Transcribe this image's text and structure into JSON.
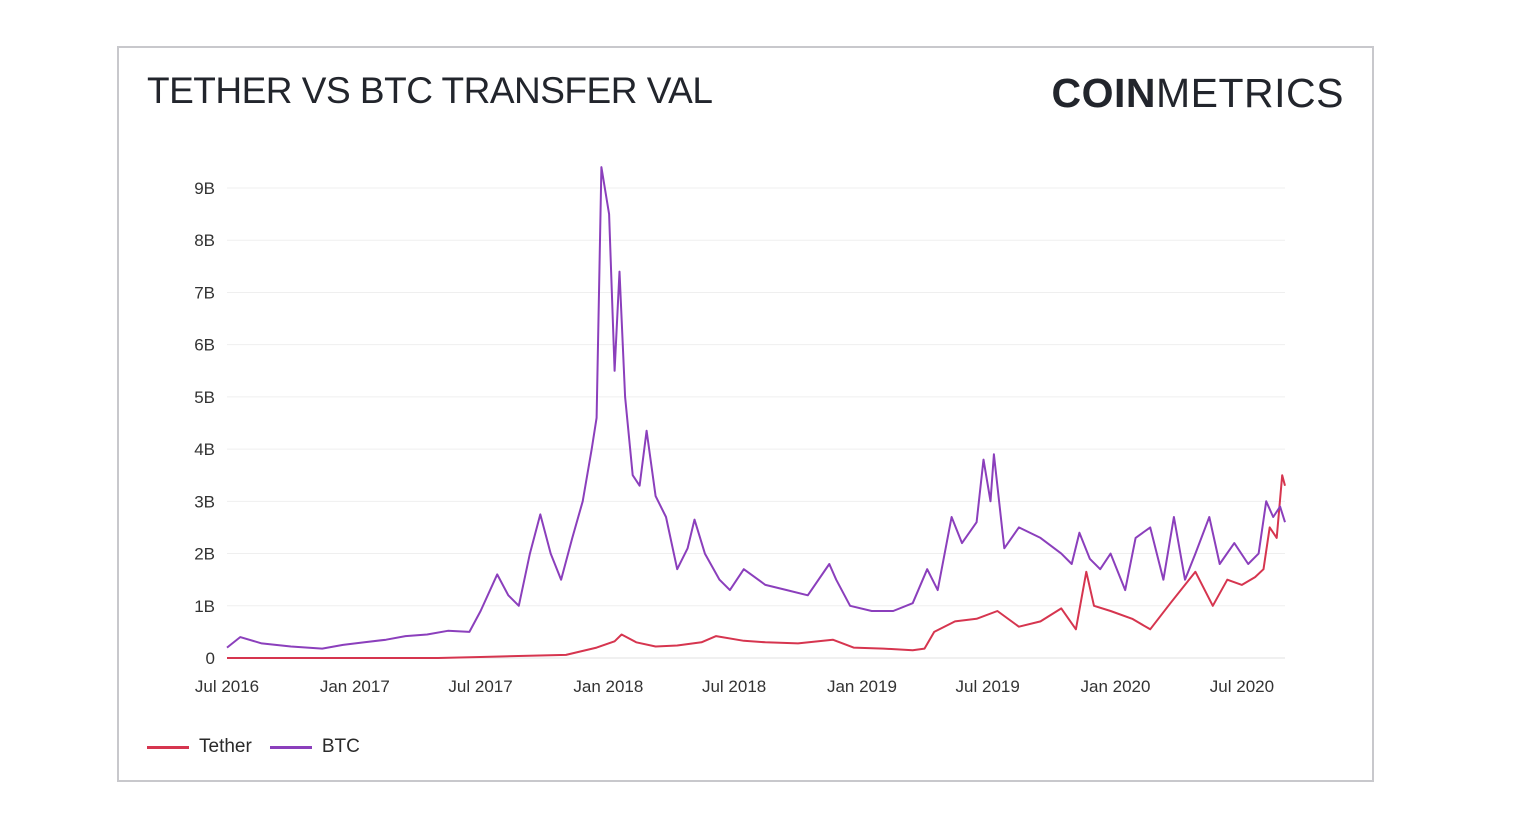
{
  "header": {
    "title": "TETHER VS BTC TRANSFER VAL",
    "logo_bold": "COIN",
    "logo_thin": "METRICS"
  },
  "chart_data": {
    "type": "line",
    "x_ticks": [
      "Jul 2016",
      "Jan 2017",
      "Jul 2017",
      "Jan 2018",
      "Jul 2018",
      "Jan 2019",
      "Jul 2019",
      "Jan 2020",
      "Jul 2020"
    ],
    "y_ticks": [
      "0",
      "1B",
      "2B",
      "3B",
      "4B",
      "5B",
      "6B",
      "7B",
      "8B",
      "9B"
    ],
    "ylim": [
      0,
      9000000000
    ],
    "xlim": [
      "2016-07-01",
      "2020-09-01"
    ],
    "grid": true,
    "legend_position": "bottom-left",
    "series": [
      {
        "name": "Tether",
        "color": "#d6354f",
        "points": [
          [
            "2016-07-01",
            0
          ],
          [
            "2017-01-01",
            0
          ],
          [
            "2017-05-01",
            0
          ],
          [
            "2017-07-01",
            20000000
          ],
          [
            "2017-09-01",
            40000000
          ],
          [
            "2017-11-01",
            60000000
          ],
          [
            "2017-12-15",
            200000000
          ],
          [
            "2018-01-10",
            320000000
          ],
          [
            "2018-01-20",
            450000000
          ],
          [
            "2018-02-10",
            300000000
          ],
          [
            "2018-03-10",
            220000000
          ],
          [
            "2018-04-10",
            240000000
          ],
          [
            "2018-05-15",
            300000000
          ],
          [
            "2018-06-05",
            420000000
          ],
          [
            "2018-07-15",
            330000000
          ],
          [
            "2018-08-15",
            300000000
          ],
          [
            "2018-10-01",
            280000000
          ],
          [
            "2018-11-20",
            350000000
          ],
          [
            "2018-12-20",
            200000000
          ],
          [
            "2019-02-01",
            180000000
          ],
          [
            "2019-03-15",
            150000000
          ],
          [
            "2019-04-01",
            180000000
          ],
          [
            "2019-04-15",
            500000000
          ],
          [
            "2019-05-15",
            700000000
          ],
          [
            "2019-06-15",
            750000000
          ],
          [
            "2019-07-15",
            900000000
          ],
          [
            "2019-08-15",
            600000000
          ],
          [
            "2019-09-15",
            700000000
          ],
          [
            "2019-10-15",
            950000000
          ],
          [
            "2019-11-05",
            550000000
          ],
          [
            "2019-11-20",
            1650000000
          ],
          [
            "2019-12-01",
            1000000000
          ],
          [
            "2019-12-25",
            900000000
          ],
          [
            "2020-01-25",
            750000000
          ],
          [
            "2020-02-20",
            550000000
          ],
          [
            "2020-03-20",
            1050000000
          ],
          [
            "2020-04-25",
            1650000000
          ],
          [
            "2020-05-20",
            1000000000
          ],
          [
            "2020-06-10",
            1500000000
          ],
          [
            "2020-07-01",
            1400000000
          ],
          [
            "2020-07-20",
            1550000000
          ],
          [
            "2020-08-01",
            1700000000
          ],
          [
            "2020-08-10",
            2500000000
          ],
          [
            "2020-08-20",
            2300000000
          ],
          [
            "2020-08-28",
            3500000000
          ],
          [
            "2020-09-01",
            3300000000
          ]
        ]
      },
      {
        "name": "BTC",
        "color": "#8b3fbc",
        "points": [
          [
            "2016-07-01",
            200000000
          ],
          [
            "2016-07-20",
            400000000
          ],
          [
            "2016-08-20",
            280000000
          ],
          [
            "2016-10-01",
            220000000
          ],
          [
            "2016-11-15",
            180000000
          ],
          [
            "2016-12-15",
            250000000
          ],
          [
            "2017-01-15",
            300000000
          ],
          [
            "2017-02-15",
            350000000
          ],
          [
            "2017-03-15",
            420000000
          ],
          [
            "2017-04-15",
            450000000
          ],
          [
            "2017-05-15",
            520000000
          ],
          [
            "2017-06-15",
            500000000
          ],
          [
            "2017-07-01",
            900000000
          ],
          [
            "2017-07-25",
            1600000000
          ],
          [
            "2017-08-10",
            1200000000
          ],
          [
            "2017-08-25",
            1000000000
          ],
          [
            "2017-09-10",
            2000000000
          ],
          [
            "2017-09-25",
            2750000000
          ],
          [
            "2017-10-10",
            2000000000
          ],
          [
            "2017-10-25",
            1500000000
          ],
          [
            "2017-11-10",
            2300000000
          ],
          [
            "2017-11-25",
            3000000000
          ],
          [
            "2017-12-08",
            4000000000
          ],
          [
            "2017-12-15",
            4600000000
          ],
          [
            "2017-12-22",
            9400000000
          ],
          [
            "2018-01-02",
            8500000000
          ],
          [
            "2018-01-10",
            5500000000
          ],
          [
            "2018-01-17",
            7400000000
          ],
          [
            "2018-01-25",
            5000000000
          ],
          [
            "2018-02-05",
            3500000000
          ],
          [
            "2018-02-15",
            3300000000
          ],
          [
            "2018-02-25",
            4350000000
          ],
          [
            "2018-03-10",
            3100000000
          ],
          [
            "2018-03-25",
            2700000000
          ],
          [
            "2018-04-10",
            1700000000
          ],
          [
            "2018-04-25",
            2100000000
          ],
          [
            "2018-05-05",
            2650000000
          ],
          [
            "2018-05-20",
            2000000000
          ],
          [
            "2018-06-10",
            1500000000
          ],
          [
            "2018-06-25",
            1300000000
          ],
          [
            "2018-07-15",
            1700000000
          ],
          [
            "2018-08-15",
            1400000000
          ],
          [
            "2018-09-15",
            1300000000
          ],
          [
            "2018-10-15",
            1200000000
          ],
          [
            "2018-11-15",
            1800000000
          ],
          [
            "2018-11-25",
            1500000000
          ],
          [
            "2018-12-15",
            1000000000
          ],
          [
            "2019-01-15",
            900000000
          ],
          [
            "2019-02-15",
            900000000
          ],
          [
            "2019-03-15",
            1050000000
          ],
          [
            "2019-04-05",
            1700000000
          ],
          [
            "2019-04-20",
            1300000000
          ],
          [
            "2019-05-10",
            2700000000
          ],
          [
            "2019-05-25",
            2200000000
          ],
          [
            "2019-06-15",
            2600000000
          ],
          [
            "2019-06-25",
            3800000000
          ],
          [
            "2019-07-05",
            3000000000
          ],
          [
            "2019-07-10",
            3900000000
          ],
          [
            "2019-07-25",
            2100000000
          ],
          [
            "2019-08-15",
            2500000000
          ],
          [
            "2019-09-15",
            2300000000
          ],
          [
            "2019-10-15",
            2000000000
          ],
          [
            "2019-10-30",
            1800000000
          ],
          [
            "2019-11-10",
            2400000000
          ],
          [
            "2019-11-25",
            1900000000
          ],
          [
            "2019-12-10",
            1700000000
          ],
          [
            "2019-12-25",
            2000000000
          ],
          [
            "2020-01-15",
            1300000000
          ],
          [
            "2020-01-30",
            2300000000
          ],
          [
            "2020-02-20",
            2500000000
          ],
          [
            "2020-03-10",
            1500000000
          ],
          [
            "2020-03-25",
            2700000000
          ],
          [
            "2020-04-10",
            1500000000
          ],
          [
            "2020-04-25",
            2000000000
          ],
          [
            "2020-05-15",
            2700000000
          ],
          [
            "2020-05-30",
            1800000000
          ],
          [
            "2020-06-20",
            2200000000
          ],
          [
            "2020-07-10",
            1800000000
          ],
          [
            "2020-07-25",
            2000000000
          ],
          [
            "2020-08-05",
            3000000000
          ],
          [
            "2020-08-15",
            2700000000
          ],
          [
            "2020-08-25",
            2900000000
          ],
          [
            "2020-09-01",
            2600000000
          ]
        ]
      }
    ]
  }
}
